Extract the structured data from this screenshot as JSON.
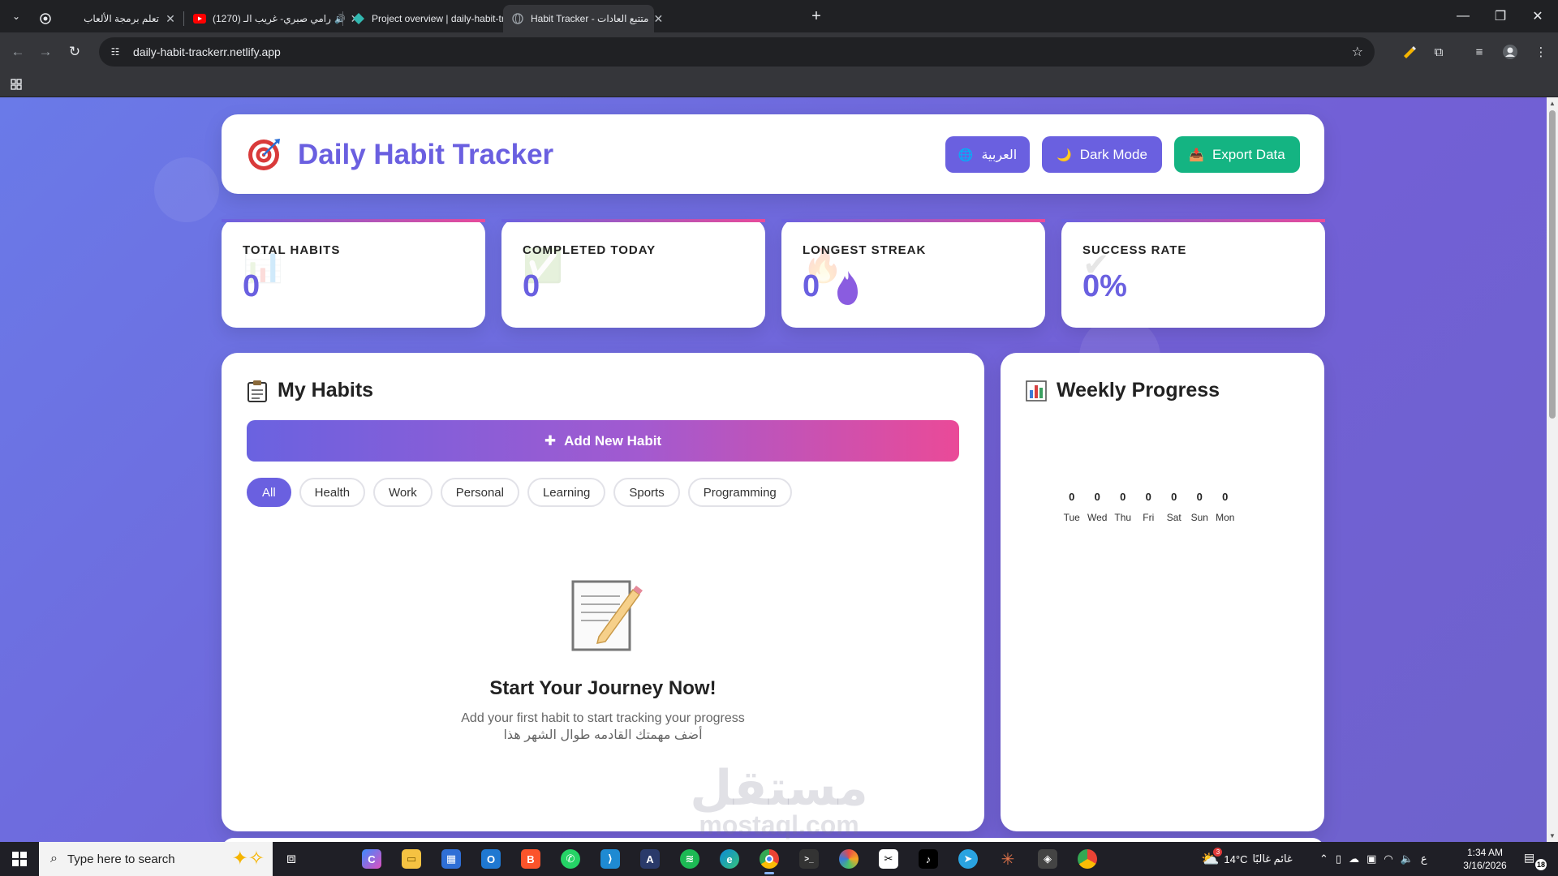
{
  "browser": {
    "tabs": [
      {
        "title": "تعلم برمجة الألعاب",
        "active": false
      },
      {
        "title": "(1270) رامي صبري- غريب الـ",
        "active": false,
        "audio_icon": "speaker-icon"
      },
      {
        "title": "Project overview | daily-habit-tr",
        "active": false
      },
      {
        "title": "Habit Tracker - متتبع العادات",
        "active": true
      }
    ],
    "url": "daily-habit-trackerr.netlify.app"
  },
  "page": {
    "header": {
      "title": "Daily Habit Tracker",
      "logo_icon": "target-dart-icon",
      "language_button": "العربية",
      "dark_mode_button": "Dark Mode",
      "export_button": "Export Data"
    },
    "stats": [
      {
        "label": "TOTAL HABITS",
        "value": "0",
        "icon": "chart-icon"
      },
      {
        "label": "COMPLETED TODAY",
        "value": "0",
        "icon": "checkbox-icon"
      },
      {
        "label": "LONGEST STREAK",
        "value": "0",
        "icon": "fire-icon"
      },
      {
        "label": "SUCCESS RATE",
        "value": "0%",
        "icon": "check-icon"
      }
    ],
    "habits": {
      "title": "My Habits",
      "add_button": "Add New Habit",
      "filters": [
        "All",
        "Health",
        "Work",
        "Personal",
        "Learning",
        "Sports",
        "Programming"
      ],
      "active_filter": "All",
      "empty_title": "Start Your Journey Now!",
      "empty_line_1": "Add your first habit to start tracking your progress",
      "empty_line_2": "أضف مهمتك القادمه طوال الشهر هذا"
    },
    "weekly_progress": {
      "title": "Weekly Progress",
      "days": [
        {
          "day": "Tue",
          "count": 0
        },
        {
          "day": "Wed",
          "count": 0
        },
        {
          "day": "Thu",
          "count": 0
        },
        {
          "day": "Fri",
          "count": 0
        },
        {
          "day": "Sat",
          "count": 0
        },
        {
          "day": "Sun",
          "count": 0
        },
        {
          "day": "Mon",
          "count": 0
        }
      ]
    },
    "watermark": {
      "arabic": "مستقل",
      "latin": "mostaql.com"
    }
  },
  "taskbar": {
    "search_placeholder": "Type here to search",
    "weather_temp": "14°C",
    "weather_text": "غائم غالبًا",
    "weather_badge": "3",
    "language": "ع",
    "time": "1:34 AM",
    "date": "3/16/2026",
    "notifications": "18"
  }
}
